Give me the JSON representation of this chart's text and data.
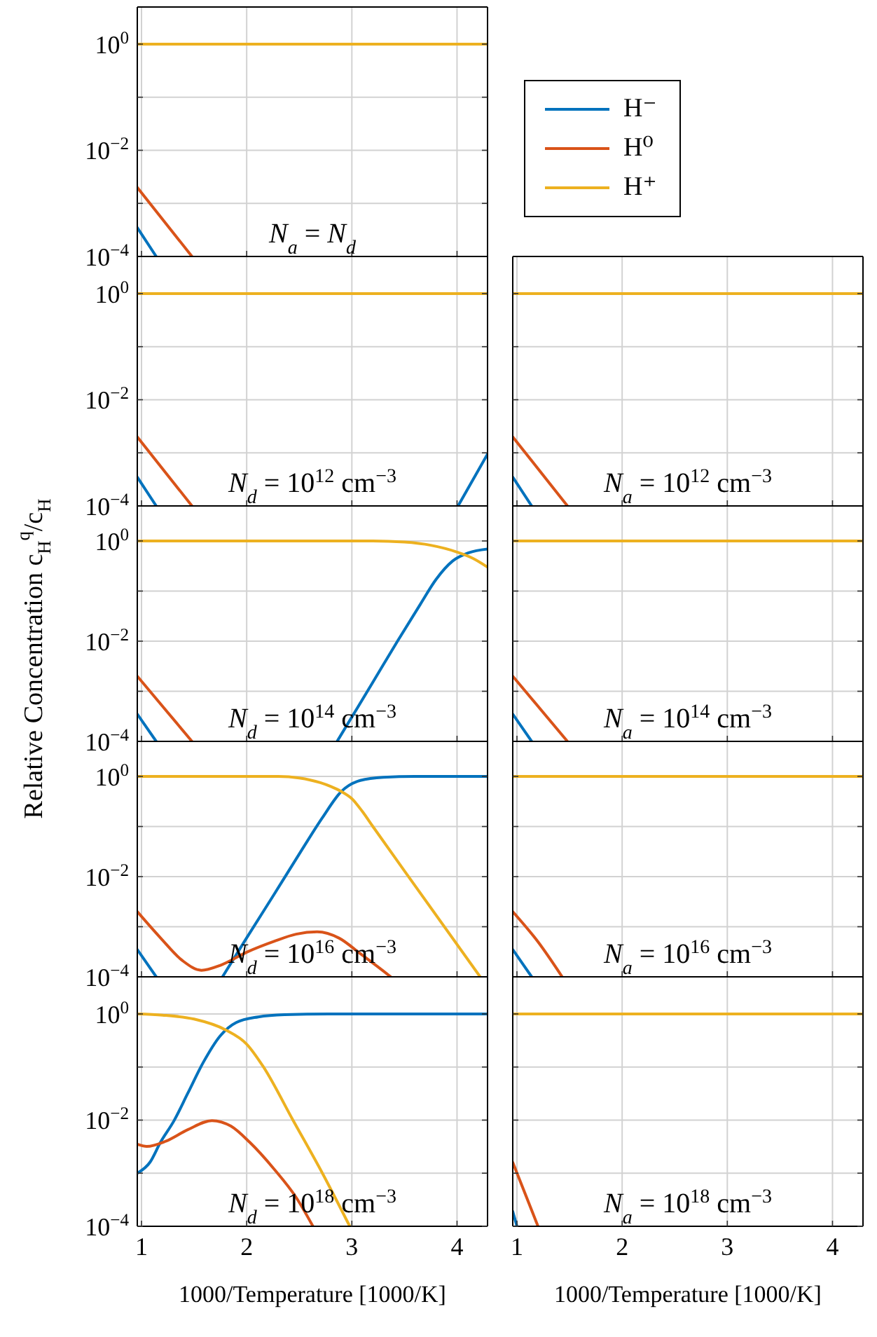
{
  "chart_data": [
    {
      "type": "line",
      "annotations": [
        "N$_{a}$ = N$_{d}$"
      ],
      "xlim": [
        0.96,
        4.29
      ],
      "xticks": [
        1,
        2,
        3,
        4
      ],
      "ylim": [
        0.0001,
        5
      ],
      "yticks": [
        {
          "value": 0.0001,
          "label": "10$^{−4}$"
        },
        {
          "value": 0.001,
          "label": null
        },
        {
          "value": 0.01,
          "label": "10$^{−2}$"
        },
        {
          "value": 0.1,
          "label": null
        },
        {
          "value": 1,
          "label": "10$^{0}$"
        }
      ],
      "log": true,
      "grid": true,
      "tick_labels": "y",
      "legend": "right",
      "series": [
        {
          "name": "H⁻",
          "color": "#0072bd",
          "x": [
            0.96,
            1.14
          ],
          "values": [
            0.00035,
            0.0001
          ]
        },
        {
          "name": "H⁰",
          "color": "#d95319",
          "x": [
            0.96,
            1.48
          ],
          "values": [
            0.002,
            0.0001
          ]
        },
        {
          "name": "H⁺",
          "color": "#edb120",
          "x": [
            0.96,
            4.29
          ],
          "values": [
            1,
            1
          ]
        }
      ]
    },
    {
      "type": "line",
      "annotations": [
        "N$_{d}$ = 10$^{12}$ cm$^{−3}$"
      ],
      "xlim": [
        0.96,
        4.29
      ],
      "xticks": [
        1,
        2,
        3,
        4
      ],
      "ylim": [
        0.0001,
        5
      ],
      "yticks": [
        {
          "value": 0.0001,
          "label": "10$^{−4}$"
        },
        {
          "value": 0.001,
          "label": null
        },
        {
          "value": 0.01,
          "label": "10$^{−2}$"
        },
        {
          "value": 0.1,
          "label": null
        },
        {
          "value": 1,
          "label": "10$^{0}$"
        }
      ],
      "log": true,
      "grid": true,
      "tick_labels": "y",
      "series": [
        {
          "color": "#0072bd",
          "x": [
            0.96,
            1.14,
            2.5,
            4.01,
            4.29
          ],
          "values": [
            0.00035,
            0.0001,
            null,
            0.0001,
            0.00095
          ]
        },
        {
          "color": "#d95319",
          "x": [
            0.96,
            1.48
          ],
          "values": [
            0.002,
            0.0001
          ]
        },
        {
          "color": "#edb120",
          "x": [
            0.96,
            4.29
          ],
          "values": [
            1,
            1
          ]
        }
      ]
    },
    {
      "type": "line",
      "annotations": [
        "N$_{a}$ = 10$^{12}$ cm$^{−3}$"
      ],
      "xlim": [
        0.96,
        4.29
      ],
      "xticks": [
        {
          "value": 1,
          "label": null
        },
        {
          "value": 2,
          "label": null
        },
        {
          "value": 3,
          "label": null
        },
        {
          "value": 4,
          "label": null
        }
      ],
      "ylim": [
        0.0001,
        5
      ],
      "yticks": [
        {
          "value": 0.0001,
          "label": null
        },
        {
          "value": 0.001,
          "label": null
        },
        {
          "value": 0.01,
          "label": null
        },
        {
          "value": 0.1,
          "label": null
        },
        {
          "value": 1,
          "label": null
        }
      ],
      "log": true,
      "grid": true,
      "tick_labels": false,
      "series": [
        {
          "color": "#0072bd",
          "x": [
            0.96,
            1.14
          ],
          "values": [
            0.00035,
            0.0001
          ]
        },
        {
          "color": "#d95319",
          "x": [
            0.96,
            1.48
          ],
          "values": [
            0.002,
            0.0001
          ]
        },
        {
          "color": "#edb120",
          "x": [
            0.96,
            4.29
          ],
          "values": [
            1,
            1
          ]
        }
      ]
    },
    {
      "type": "line",
      "ylabel": "Relative Concentration c$_{H}$$^{q}$/c$_{H}$",
      "annotations": [
        "N$_{d}$ = 10$^{14}$ cm$^{−3}$"
      ],
      "xlim": [
        0.96,
        4.29
      ],
      "xticks": [
        1,
        2,
        3,
        4
      ],
      "ylim": [
        0.0001,
        5
      ],
      "yticks": [
        {
          "value": 0.0001,
          "label": "10$^{−4}$"
        },
        {
          "value": 0.001,
          "label": null
        },
        {
          "value": 0.01,
          "label": "10$^{−2}$"
        },
        {
          "value": 0.1,
          "label": null
        },
        {
          "value": 1,
          "label": "10$^{0}$"
        }
      ],
      "log": true,
      "grid": true,
      "tick_labels": "y",
      "series": [
        {
          "color": "#0072bd",
          "x": [
            0.96,
            1.14,
            2.0,
            2.86,
            3.19,
            3.44,
            3.65,
            3.8,
            3.96,
            4.11,
            4.29
          ],
          "values": [
            0.00035,
            0.0001,
            null,
            0.0001,
            0.0014,
            0.0105,
            0.054,
            0.17,
            0.4,
            0.58,
            0.69
          ]
        },
        {
          "color": "#d95319",
          "x": [
            0.96,
            1.48
          ],
          "values": [
            0.002,
            0.0001
          ]
        },
        {
          "color": "#edb120",
          "x": [
            0.96,
            3.2,
            3.5,
            3.75,
            4.0,
            4.15,
            4.29
          ],
          "values": [
            1,
            1,
            0.95,
            0.82,
            0.6,
            0.45,
            0.3
          ]
        }
      ]
    },
    {
      "type": "line",
      "annotations": [
        "N$_{a}$ = 10$^{14}$ cm$^{−3}$"
      ],
      "xlim": [
        0.96,
        4.29
      ],
      "xticks": [
        {
          "value": 1,
          "label": null
        },
        {
          "value": 2,
          "label": null
        },
        {
          "value": 3,
          "label": null
        },
        {
          "value": 4,
          "label": null
        }
      ],
      "ylim": [
        0.0001,
        5
      ],
      "yticks": [
        {
          "value": 0.0001,
          "label": null
        },
        {
          "value": 0.001,
          "label": null
        },
        {
          "value": 0.01,
          "label": null
        },
        {
          "value": 0.1,
          "label": null
        },
        {
          "value": 1,
          "label": null
        }
      ],
      "log": true,
      "grid": true,
      "tick_labels": false,
      "series": [
        {
          "color": "#0072bd",
          "x": [
            0.96,
            1.14
          ],
          "values": [
            0.00035,
            0.0001
          ]
        },
        {
          "color": "#d95319",
          "x": [
            0.96,
            1.48
          ],
          "values": [
            0.002,
            0.0001
          ]
        },
        {
          "color": "#edb120",
          "x": [
            0.96,
            4.29
          ],
          "values": [
            1,
            1
          ]
        }
      ]
    },
    {
      "type": "line",
      "annotations": [
        "N$_{d}$ = 10$^{16}$ cm$^{−3}$"
      ],
      "xlim": [
        0.96,
        4.29
      ],
      "xticks": [
        1,
        2,
        3,
        4
      ],
      "ylim": [
        0.0001,
        5
      ],
      "yticks": [
        {
          "value": 0.0001,
          "label": "10$^{−4}$"
        },
        {
          "value": 0.001,
          "label": null
        },
        {
          "value": 0.01,
          "label": "10$^{−2}$"
        },
        {
          "value": 0.1,
          "label": null
        },
        {
          "value": 1,
          "label": "10$^{0}$"
        }
      ],
      "log": true,
      "grid": true,
      "tick_labels": "y",
      "series": [
        {
          "color": "#0072bd",
          "x": [
            0.96,
            1.14,
            1.5,
            1.77,
            2.0,
            2.26,
            2.52,
            2.72,
            2.9,
            3.08,
            3.3,
            3.6,
            4.29
          ],
          "values": [
            0.00035,
            0.0001,
            null,
            0.0001,
            0.0006,
            0.0044,
            0.033,
            0.15,
            0.5,
            0.83,
            0.96,
            1,
            1
          ]
        },
        {
          "color": "#d95319",
          "x": [
            0.96,
            1.18,
            1.39,
            1.57,
            1.75,
            2.0,
            2.26,
            2.47,
            2.67,
            2.88,
            3.08,
            3.29,
            3.37
          ],
          "values": [
            0.002,
            0.0006,
            0.00021,
            0.000135,
            0.00017,
            0.00031,
            0.00051,
            0.00071,
            0.00079,
            0.00059,
            0.00029,
            0.000135,
            0.0001
          ]
        },
        {
          "color": "#edb120",
          "x": [
            0.96,
            2.3,
            2.5,
            2.7,
            2.8,
            2.9,
            3.0,
            3.1,
            3.2,
            3.5,
            4.22
          ],
          "values": [
            1,
            1,
            0.93,
            0.75,
            0.63,
            0.5,
            0.36,
            0.2,
            0.1,
            0.013,
            0.0001
          ]
        }
      ]
    },
    {
      "type": "line",
      "annotations": [
        "N$_{a}$ = 10$^{16}$ cm$^{−3}$"
      ],
      "xlim": [
        0.96,
        4.29
      ],
      "xticks": [
        {
          "value": 1,
          "label": null
        },
        {
          "value": 2,
          "label": null
        },
        {
          "value": 3,
          "label": null
        },
        {
          "value": 4,
          "label": null
        }
      ],
      "ylim": [
        0.0001,
        5
      ],
      "yticks": [
        {
          "value": 0.0001,
          "label": null
        },
        {
          "value": 0.001,
          "label": null
        },
        {
          "value": 0.01,
          "label": null
        },
        {
          "value": 0.1,
          "label": null
        },
        {
          "value": 1,
          "label": null
        }
      ],
      "log": true,
      "grid": true,
      "tick_labels": false,
      "series": [
        {
          "color": "#0072bd",
          "x": [
            0.96,
            1.14
          ],
          "values": [
            0.00035,
            0.0001
          ]
        },
        {
          "color": "#d95319",
          "x": [
            0.96,
            1.2,
            1.43
          ],
          "values": [
            0.002,
            0.0005,
            0.0001
          ]
        },
        {
          "color": "#edb120",
          "x": [
            0.96,
            4.29
          ],
          "values": [
            1,
            1
          ]
        }
      ]
    },
    {
      "type": "line",
      "xlabel": "1000/Temperature [1000/K]",
      "annotations": [
        "N$_{d}$ = 10$^{18}$ cm$^{−3}$"
      ],
      "xlim": [
        0.96,
        4.29
      ],
      "xticks": [
        1,
        2,
        3,
        4
      ],
      "ylim": [
        0.0001,
        5
      ],
      "yticks": [
        {
          "value": 0.0001,
          "label": "10$^{−4}$"
        },
        {
          "value": 0.001,
          "label": null
        },
        {
          "value": 0.01,
          "label": "10$^{−2}$"
        },
        {
          "value": 0.1,
          "label": null
        },
        {
          "value": 1,
          "label": "10$^{0}$"
        }
      ],
      "log": true,
      "grid": true,
      "series": [
        {
          "color": "#0072bd",
          "x": [
            0.96,
            1.08,
            1.18,
            1.31,
            1.44,
            1.59,
            1.75,
            1.9,
            2.11,
            2.36,
            2.78,
            4.29
          ],
          "values": [
            0.001,
            0.0016,
            0.0038,
            0.0098,
            0.032,
            0.125,
            0.39,
            0.69,
            0.88,
            0.97,
            1,
            1
          ]
        },
        {
          "color": "#d95319",
          "x": [
            0.96,
            1.05,
            1.23,
            1.44,
            1.67,
            1.85,
            2.03,
            2.26,
            2.47,
            2.63
          ],
          "values": [
            0.0035,
            0.0032,
            0.004,
            0.0066,
            0.0098,
            0.0077,
            0.0038,
            0.0012,
            0.00035,
            0.0001
          ]
        },
        {
          "color": "#edb120",
          "x": [
            0.96,
            1.2,
            1.5,
            1.8,
            2.0,
            2.16,
            2.44,
            2.72,
            2.98
          ],
          "values": [
            1,
            0.95,
            0.8,
            0.5,
            0.27,
            0.1,
            0.01,
            0.001,
            0.0001
          ]
        }
      ]
    },
    {
      "type": "line",
      "xlabel": "1000/Temperature [1000/K]",
      "annotations": [
        "N$_{a}$ = 10$^{18}$ cm$^{−3}$"
      ],
      "xlim": [
        0.96,
        4.29
      ],
      "xticks": [
        1,
        2,
        3,
        4
      ],
      "ylim": [
        0.0001,
        5
      ],
      "yticks": [
        {
          "value": 0.0001,
          "label": null
        },
        {
          "value": 0.001,
          "label": null
        },
        {
          "value": 0.01,
          "label": null
        },
        {
          "value": 0.1,
          "label": null
        },
        {
          "value": 1,
          "label": null
        }
      ],
      "log": true,
      "grid": true,
      "tick_labels": "x",
      "series": [
        {
          "color": "#0072bd",
          "x": [
            0.96,
            1.0
          ],
          "values": [
            0.00019,
            0.0001
          ]
        },
        {
          "color": "#d95319",
          "x": [
            0.96,
            1.2
          ],
          "values": [
            0.0016,
            0.0001
          ]
        },
        {
          "color": "#edb120",
          "x": [
            0.96,
            4.29
          ],
          "values": [
            1,
            1
          ]
        }
      ]
    }
  ]
}
